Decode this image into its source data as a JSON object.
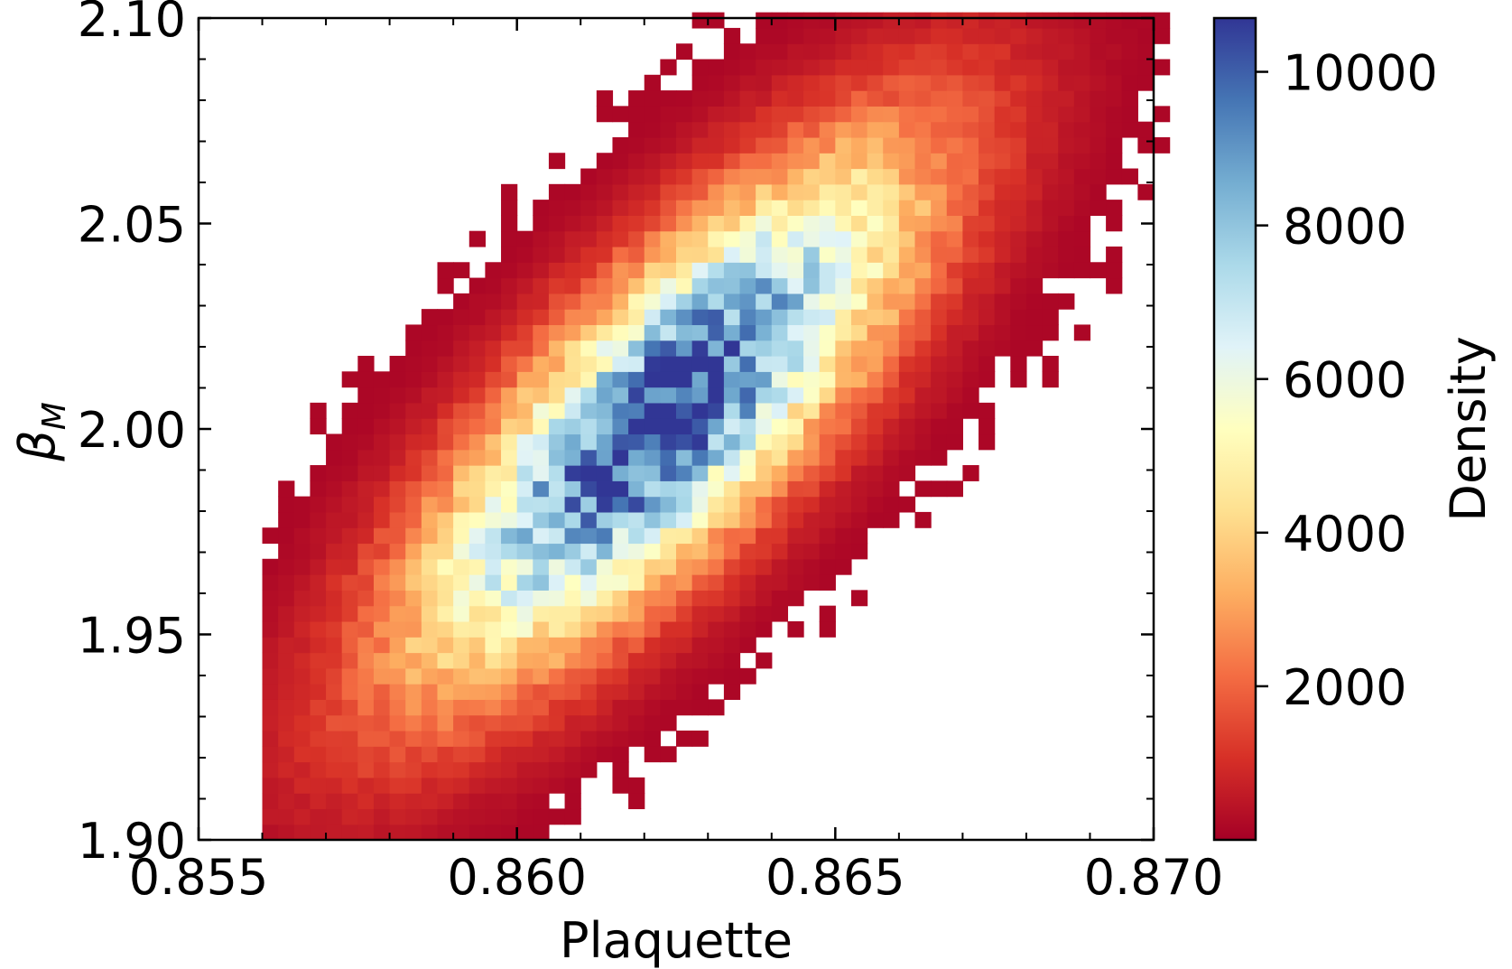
{
  "chart_data": {
    "type": "heatmap",
    "title": "",
    "xlabel": "Plaquette",
    "ylabel": "β",
    "ylabel_subscript": "M",
    "xlim": [
      0.855,
      0.87
    ],
    "ylim": [
      1.9,
      2.1
    ],
    "x_ticks": [
      "0.855",
      "0.860",
      "0.865",
      "0.870"
    ],
    "y_ticks": [
      "1.90",
      "1.95",
      "2.00",
      "2.05",
      "2.10"
    ],
    "colorbar": {
      "label": "Density",
      "range": [
        0,
        10700
      ],
      "ticks": [
        "2000",
        "4000",
        "6000",
        "8000",
        "10000"
      ],
      "colormap": "RdYlBu",
      "colors": [
        "#a50026",
        "#d73027",
        "#f46d43",
        "#fdae61",
        "#fee090",
        "#ffffbf",
        "#e0f3f8",
        "#abd9e9",
        "#74add1",
        "#4575b4",
        "#313695"
      ]
    },
    "distribution": {
      "center_x": 0.8623,
      "center_y": 2.003,
      "slope_dy_dx": 16.0,
      "spread_along": 0.0035,
      "spread_perp": 0.0012,
      "peak_density": 10700
    },
    "bin_width_x": 0.00025,
    "bin_width_y": 0.0038
  }
}
